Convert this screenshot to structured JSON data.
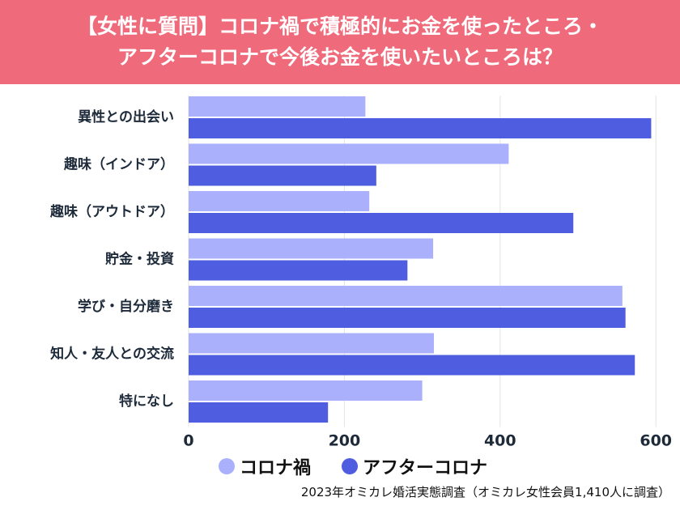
{
  "title_lines": [
    "【女性に質問】コロナ禍で積極的にお金を使ったところ・",
    "アフターコロナで今後お金を使いたいところは？"
  ],
  "source": "2023年オミカレ婚活実態調査（オミカレ女性会員1,410人に調査）",
  "chart_data": {
    "type": "bar",
    "orientation": "horizontal",
    "categories": [
      "異性との出会い",
      "趣味（インドア）",
      "趣味（アウトドア）",
      "貯金・投資",
      "学び・自分磨き",
      "知人・友人との交流",
      "特になし"
    ],
    "series": [
      {
        "name": "コロナ禍",
        "color": "#aab0fb",
        "values": [
          227,
          411,
          232,
          314,
          557,
          315,
          300
        ]
      },
      {
        "name": "アフターコロナ",
        "color": "#4f5de0",
        "values": [
          594,
          241,
          494,
          281,
          561,
          573,
          179
        ]
      }
    ],
    "xlim": [
      0,
      620
    ],
    "xticks": [
      0,
      200,
      400,
      600
    ],
    "grid": true,
    "legend": "bottom"
  }
}
